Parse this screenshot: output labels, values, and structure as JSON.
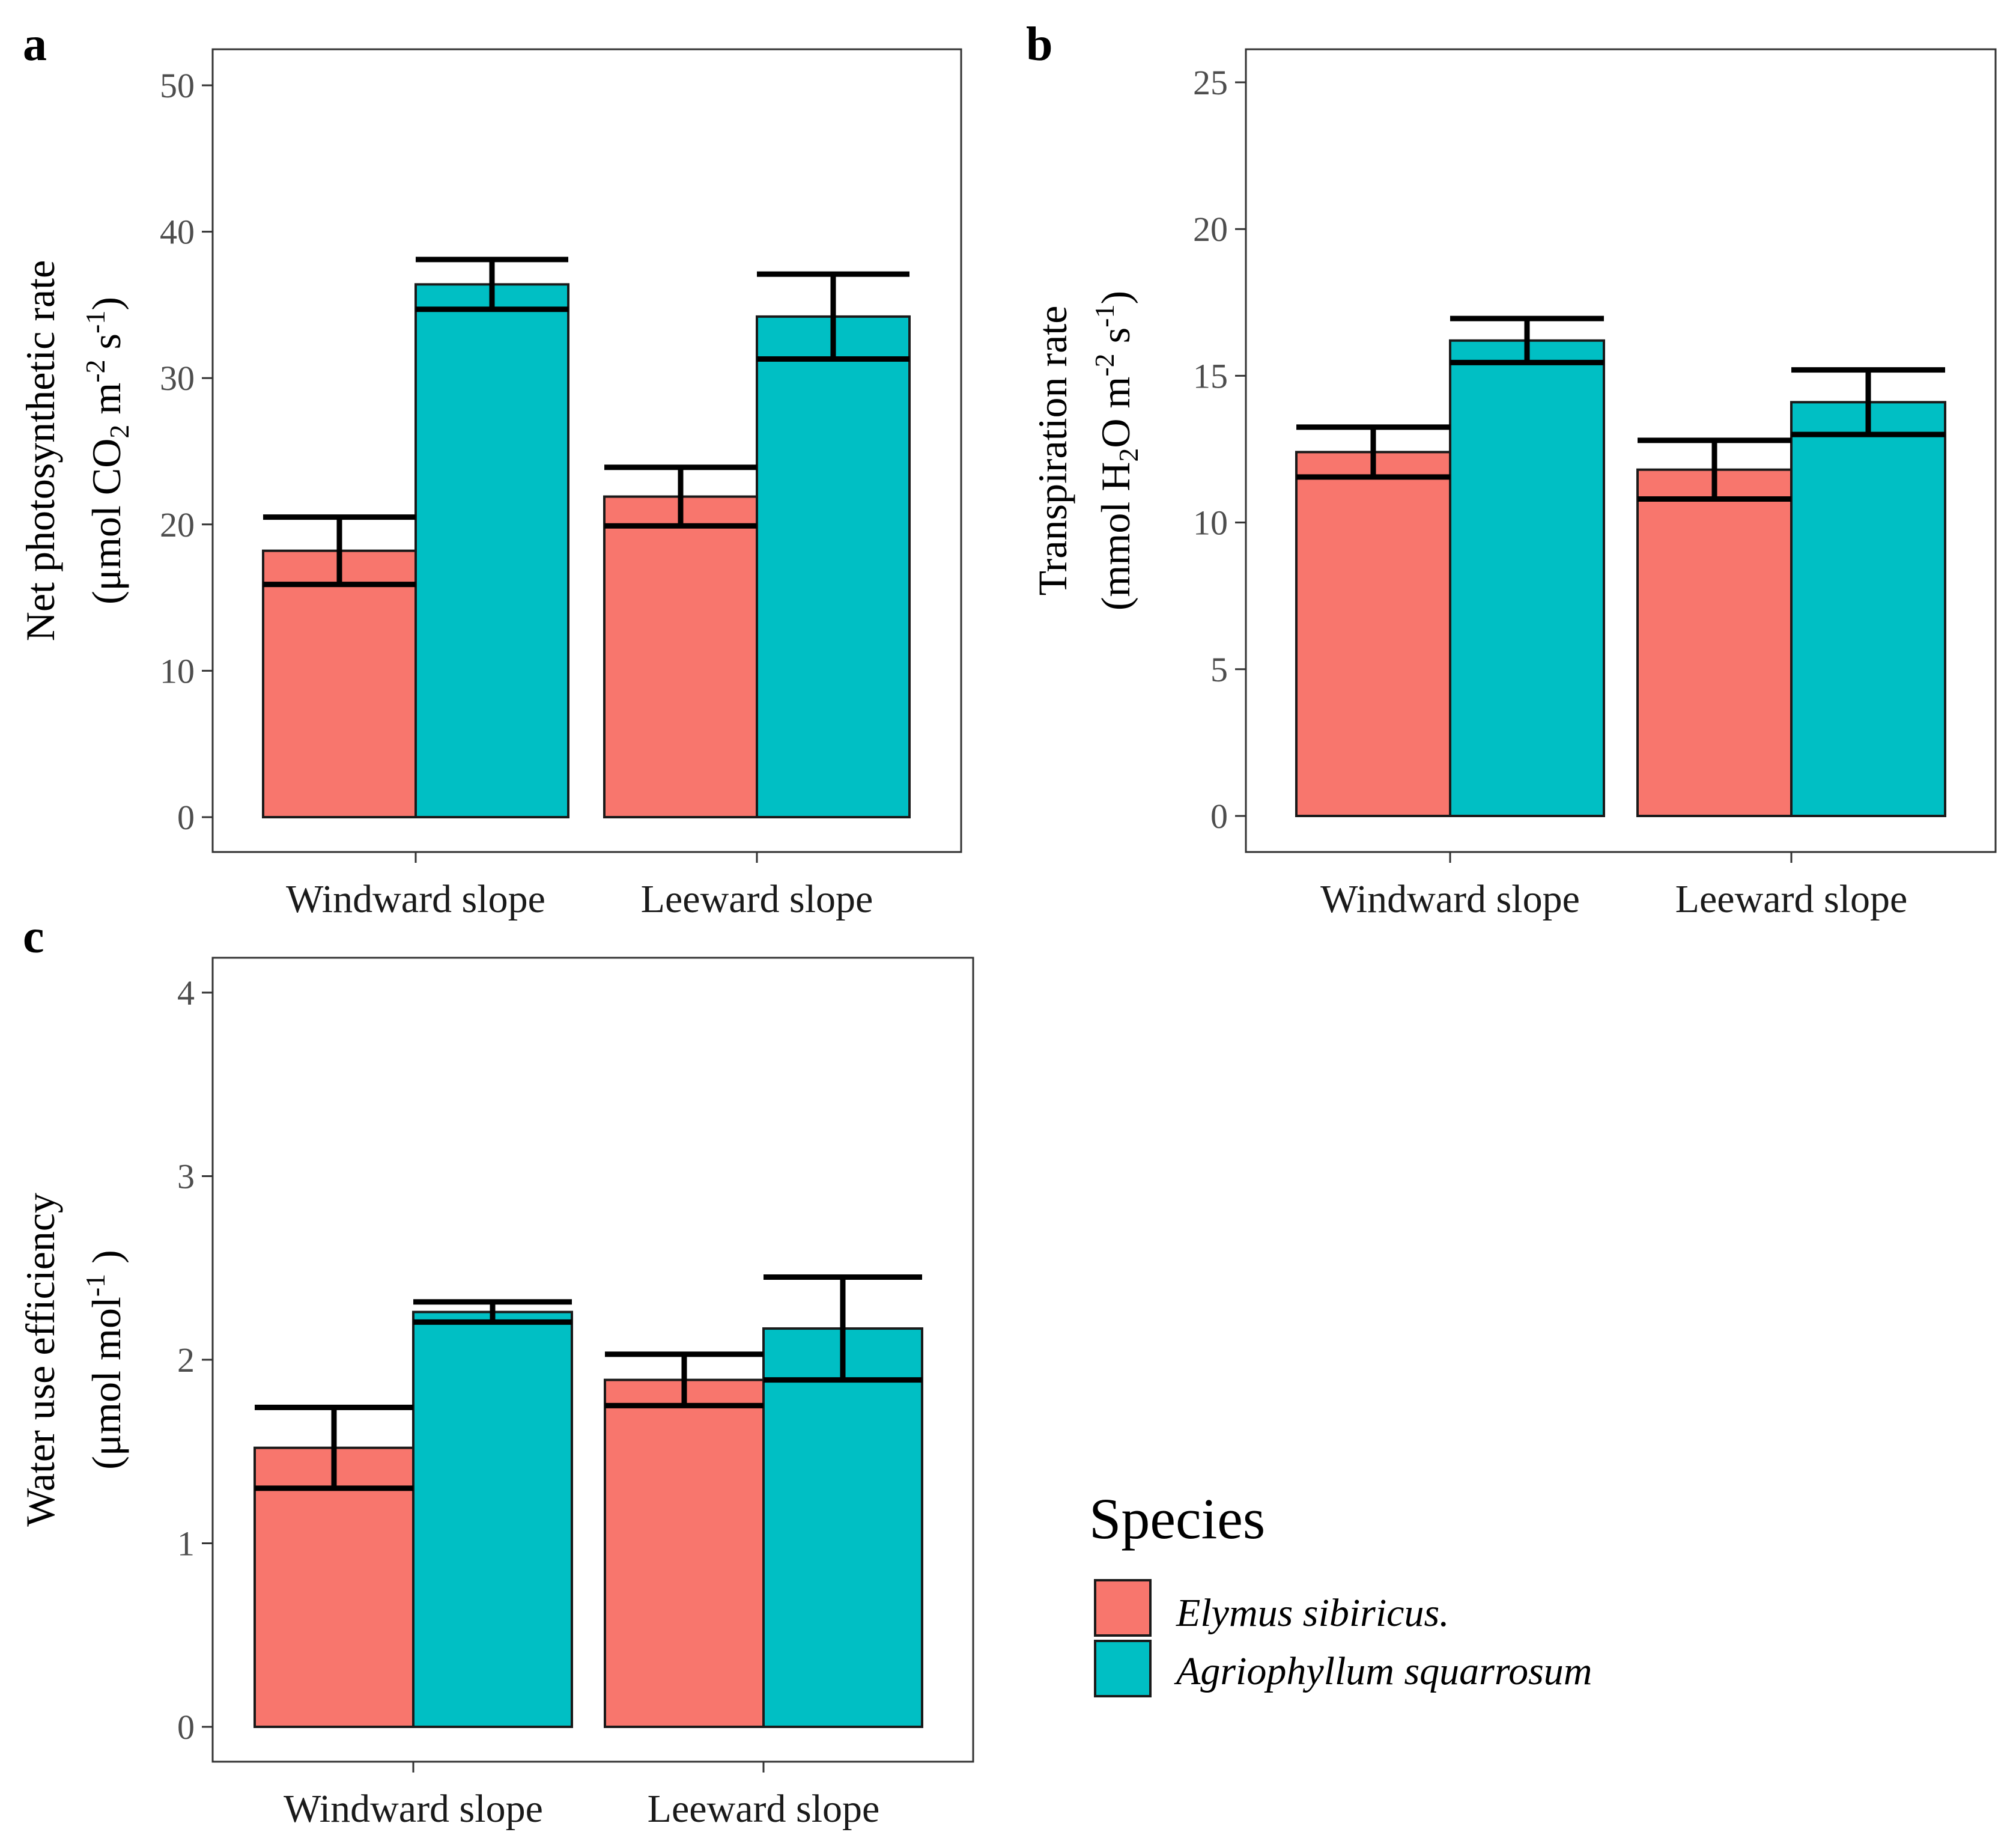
{
  "chart_data": [
    {
      "panel_label": "a",
      "type": "bar",
      "categories": [
        "Windward slope",
        "Leeward slope"
      ],
      "series": [
        {
          "name": "Elymus sibiricus.",
          "values": [
            18.2,
            21.9
          ],
          "errors": [
            2.3,
            2.0
          ]
        },
        {
          "name": "Agriophyllum squarrosum",
          "values": [
            36.4,
            34.2
          ],
          "errors": [
            1.7,
            2.9
          ]
        }
      ],
      "ylabel_line1": "Net photosynthetic rate",
      "ylabel_line2": {
        "pre": "(μmol CO",
        "sub": "2",
        "mid": " m",
        "sup1": "-2",
        "mid2": " s",
        "sup2": "-1",
        "post": ")"
      },
      "ylim": [
        0,
        50
      ],
      "yticks": [
        "0",
        "10",
        "20",
        "30",
        "40",
        "50"
      ],
      "ytick_values": [
        0,
        10,
        20,
        30,
        40,
        50
      ]
    },
    {
      "panel_label": "b",
      "type": "bar",
      "categories": [
        "Windward slope",
        "Leeward slope"
      ],
      "series": [
        {
          "name": "Elymus sibiricus.",
          "values": [
            12.4,
            11.8
          ],
          "errors": [
            0.85,
            1.0
          ]
        },
        {
          "name": "Agriophyllum squarrosum",
          "values": [
            16.2,
            14.1
          ],
          "errors": [
            0.75,
            1.1
          ]
        }
      ],
      "ylabel_line1": "Transpiration rate",
      "ylabel_line2": {
        "pre": "(mmol H",
        "sub": "2",
        "mid": "O m",
        "sup1": "-2",
        "mid2": " s",
        "sup2": "-1",
        "post": ")"
      },
      "ylim": [
        0,
        25
      ],
      "yticks": [
        "0",
        "5",
        "10",
        "15",
        "20",
        "25"
      ],
      "ytick_values": [
        0,
        5,
        10,
        15,
        20,
        25
      ]
    },
    {
      "panel_label": "c",
      "type": "bar",
      "categories": [
        "Windward slope",
        "Leeward slope"
      ],
      "series": [
        {
          "name": "Elymus sibiricus.",
          "values": [
            1.52,
            1.89
          ],
          "errors": [
            0.22,
            0.14
          ]
        },
        {
          "name": "Agriophyllum squarrosum",
          "values": [
            2.26,
            2.17
          ],
          "errors": [
            0.055,
            0.28
          ]
        }
      ],
      "ylabel_line1": "Water use efficiency",
      "ylabel_line2": {
        "pre": "(μmol mol",
        "sub": "",
        "mid": "",
        "sup1": "-1",
        "mid2": "",
        "sup2": "",
        "post": ")"
      },
      "ylim": [
        0,
        4
      ],
      "yticks": [
        "0",
        "1",
        "2",
        "3",
        "4"
      ],
      "ytick_values": [
        0,
        1,
        2,
        3,
        4
      ]
    }
  ],
  "legend": {
    "title": "Species",
    "items": [
      {
        "label": "Elymus sibiricus.",
        "color": "#F8766D"
      },
      {
        "label": "Agriophyllum squarrosum",
        "color": "#00BFC4"
      }
    ]
  },
  "colors": {
    "series1": "#F8766D",
    "series2": "#00BFC4",
    "panel_border": "#333333",
    "tick_text": "#4d4d4d"
  }
}
